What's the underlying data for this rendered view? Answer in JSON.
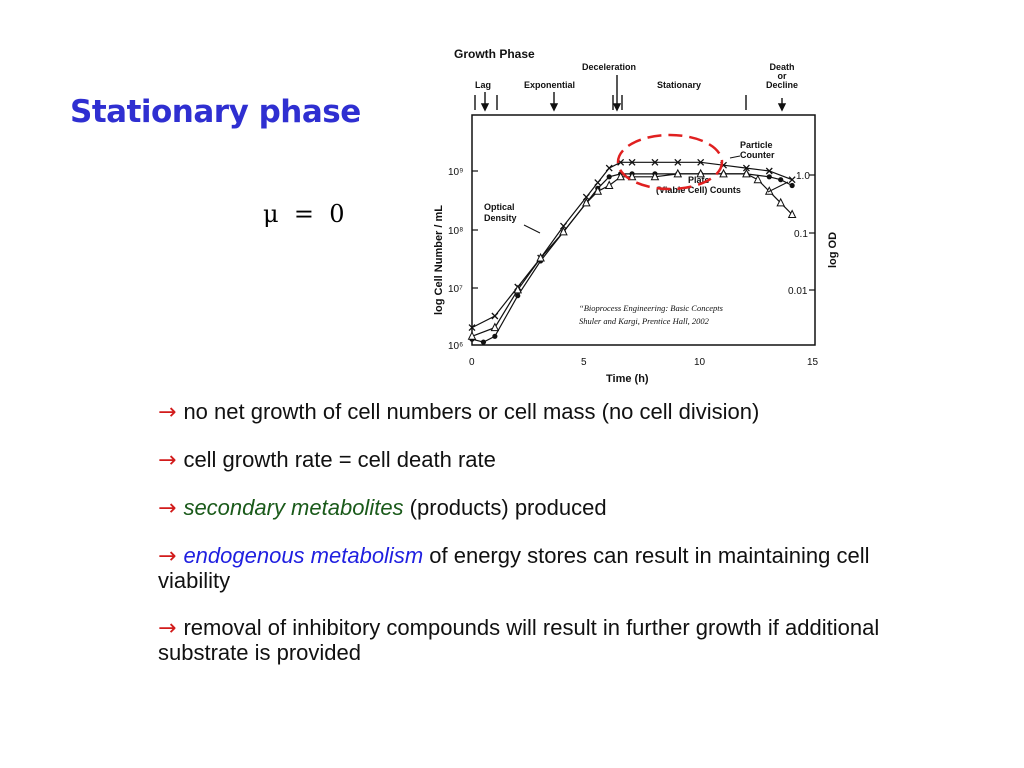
{
  "slide": {
    "title": "Stationary phase",
    "equation": "μ  =  0"
  },
  "figure": {
    "growth_phase_label": "Growth  Phase",
    "phases": [
      "Lag",
      "Exponential",
      "Deceleration",
      "Stationary",
      "Death or Decline"
    ],
    "y_axis_label": "log  Cell  Number / mL",
    "y_ticks": [
      "10⁹",
      "10⁸",
      "10⁷",
      "10⁶"
    ],
    "right_axis_label": "log  OD",
    "right_ticks": [
      "1.0",
      "0.1",
      "0.01"
    ],
    "x_axis_label": "Time  (h)",
    "x_ticks": [
      "0",
      "5",
      "10",
      "15"
    ],
    "labels": {
      "particle_counter": [
        "Particle",
        "Counter"
      ],
      "optical_density": [
        "Optical",
        "Density"
      ],
      "plate": [
        "Plate",
        "(Viable Cell)  Counts"
      ]
    },
    "citation_line1": "“Bioprocess Engineering: Basic Concepts",
    "citation_line2": "Shuler and Kargi, Prentice Hall, 2002",
    "highlight_color": "#e02020"
  },
  "chart_data": {
    "type": "scatter",
    "x_label": "Time  (h)",
    "y_label": "log  Cell  Number / mL",
    "y2_label": "log  OD",
    "xlim": [
      0,
      15
    ],
    "log_y": true,
    "series": [
      {
        "name": "Particle Counter",
        "marker": "x",
        "x": [
          0,
          1,
          2,
          3,
          4,
          5,
          5.5,
          6,
          6.5,
          7,
          8,
          9,
          10,
          11,
          12,
          13,
          14
        ],
        "y": [
          6.3,
          6.5,
          7,
          7.5,
          8.05,
          8.55,
          8.8,
          9.05,
          9.15,
          9.15,
          9.15,
          9.15,
          9.15,
          9.1,
          9.05,
          9.0,
          8.85
        ]
      },
      {
        "name": "Plate (Viable Cell) Counts",
        "marker": "dot",
        "x": [
          0,
          0.5,
          1,
          2,
          3,
          4,
          5,
          5.5,
          6,
          6.5,
          7,
          8,
          9,
          10,
          11,
          12,
          13,
          13.5,
          14
        ],
        "y": [
          6.1,
          6.05,
          6.15,
          6.85,
          7.45,
          7.95,
          8.45,
          8.7,
          8.9,
          8.95,
          8.95,
          8.95,
          8.95,
          8.95,
          8.95,
          8.95,
          8.9,
          8.85,
          8.75
        ]
      },
      {
        "name": "Optical Density",
        "marker": "triangle",
        "x": [
          0,
          1,
          2,
          3,
          4,
          5,
          5.5,
          6,
          6.5,
          7,
          8,
          9,
          10,
          11,
          12,
          12.5,
          13,
          13.5,
          14
        ],
        "y": [
          6.15,
          6.3,
          6.95,
          7.5,
          7.95,
          8.45,
          8.65,
          8.75,
          8.9,
          8.9,
          8.9,
          8.95,
          8.95,
          8.95,
          8.95,
          8.85,
          8.65,
          8.45,
          8.25
        ]
      }
    ]
  },
  "bullets": [
    {
      "arrow": "→",
      "parts": [
        {
          "text": "no net growth of cell numbers or cell mass (no cell division)",
          "style": "plain"
        }
      ]
    },
    {
      "arrow": "→",
      "parts": [
        {
          "text": "cell growth rate = cell death rate",
          "style": "plain"
        }
      ]
    },
    {
      "arrow": "→",
      "parts": [
        {
          "text": "secondary metabolites",
          "style": "green"
        },
        {
          "text": " (products) produced",
          "style": "plain"
        }
      ]
    },
    {
      "arrow": "→",
      "parts": [
        {
          "text": "endogenous metabolism",
          "style": "blue"
        },
        {
          "text": " of energy stores can result in maintaining cell viability",
          "style": "plain"
        }
      ]
    },
    {
      "arrow": "→",
      "parts": [
        {
          "text": "removal of inhibitory compounds will result in further growth if additional substrate is provided",
          "style": "plain"
        }
      ]
    }
  ]
}
